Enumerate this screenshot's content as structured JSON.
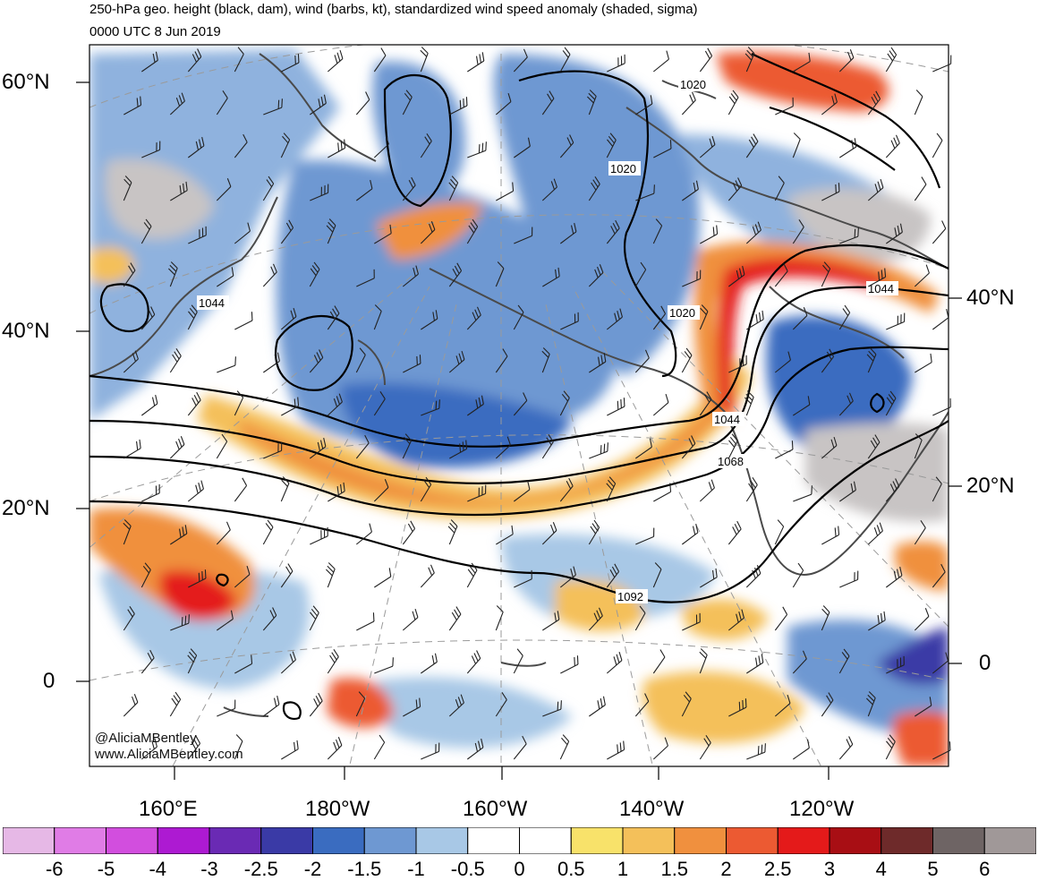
{
  "header": {
    "title": "250-hPa geo. height (black, dam), wind (barbs, kt), standardized wind speed anomaly (shaded, sigma)",
    "valid_time": "0000 UTC 8 Jun 2019"
  },
  "map": {
    "projection": "polar stereographic (North Pacific)",
    "left_lat_labels": [
      "60°N",
      "40°N",
      "20°N",
      "0"
    ],
    "right_lat_labels": [
      "40°N",
      "20°N",
      "0"
    ],
    "lon_labels": [
      "160°E",
      "180°W",
      "160°W",
      "140°W",
      "120°W"
    ],
    "contour_labels": [
      "1020",
      "1020",
      "1020",
      "1044",
      "1044",
      "1044",
      "1068",
      "1092"
    ],
    "colors": {
      "coast": "#4a4a4a",
      "contour": "#000000",
      "grid": "#9a9a9a"
    }
  },
  "credits": {
    "handle": "@AliciaMBentley",
    "website": "www.AliciaMBentley.com"
  },
  "colorbar": {
    "labels": [
      "-6",
      "-5",
      "-4",
      "-3",
      "-2.5",
      "-2",
      "-1.5",
      "-1",
      "-0.5",
      "0",
      "0.5",
      "1",
      "1.5",
      "2",
      "2.5",
      "3",
      "4",
      "5",
      "6"
    ],
    "colors": [
      "#e6b8e6",
      "#e07ce6",
      "#d24ede",
      "#ad1ad2",
      "#6a2ab4",
      "#3a3aa6",
      "#3a6cc0",
      "#6e98d2",
      "#a8c8e6",
      "#ffffff",
      "#ffffff",
      "#f8e26a",
      "#f4c05a",
      "#f0903e",
      "#ec5a32",
      "#e41a1a",
      "#a80e14",
      "#6e2a2a",
      "#6e6464",
      "#a09898"
    ]
  }
}
